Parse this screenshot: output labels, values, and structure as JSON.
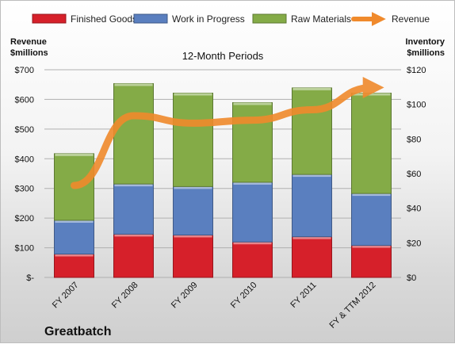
{
  "chart_data": {
    "type": "bar",
    "stacked": true,
    "subtitle": "12-Month Periods",
    "company": "Greatbatch",
    "left_axis": {
      "title_line1": "Revenue",
      "title_line2": "$millions",
      "range": [
        0,
        700
      ],
      "ticks": [
        "$-",
        "$100",
        "$200",
        "$300",
        "$400",
        "$500",
        "$600",
        "$700"
      ]
    },
    "right_axis": {
      "title_line1": "Inventory",
      "title_line2": "$millions",
      "range": [
        0,
        120
      ],
      "ticks": [
        "$0",
        "$20",
        "$40",
        "$60",
        "$80",
        "$100",
        "$120"
      ]
    },
    "categories": [
      "FY 2007",
      "FY 2008",
      "FY 2009",
      "FY 2010",
      "FY 2011",
      "FY & TTM 2012"
    ],
    "series": [
      {
        "name": "Finished Goods",
        "axis": "right",
        "color": "#d6202a",
        "values": [
          13.5,
          25,
          24.5,
          20.5,
          23.5,
          18.5
        ]
      },
      {
        "name": "Work in Progress",
        "axis": "right",
        "color": "#5a7fbf",
        "values": [
          19.5,
          29,
          28,
          34.5,
          36,
          30
        ]
      },
      {
        "name": "Raw Materials",
        "axis": "right",
        "color": "#84ab47",
        "values": [
          38.5,
          58,
          54,
          46,
          50,
          58
        ]
      },
      {
        "name": "Revenue",
        "axis": "left",
        "type": "line",
        "color": "#f08a2c",
        "values": [
          310,
          545,
          520,
          530,
          565,
          640
        ]
      }
    ],
    "grid": true,
    "legend_position": "top"
  }
}
